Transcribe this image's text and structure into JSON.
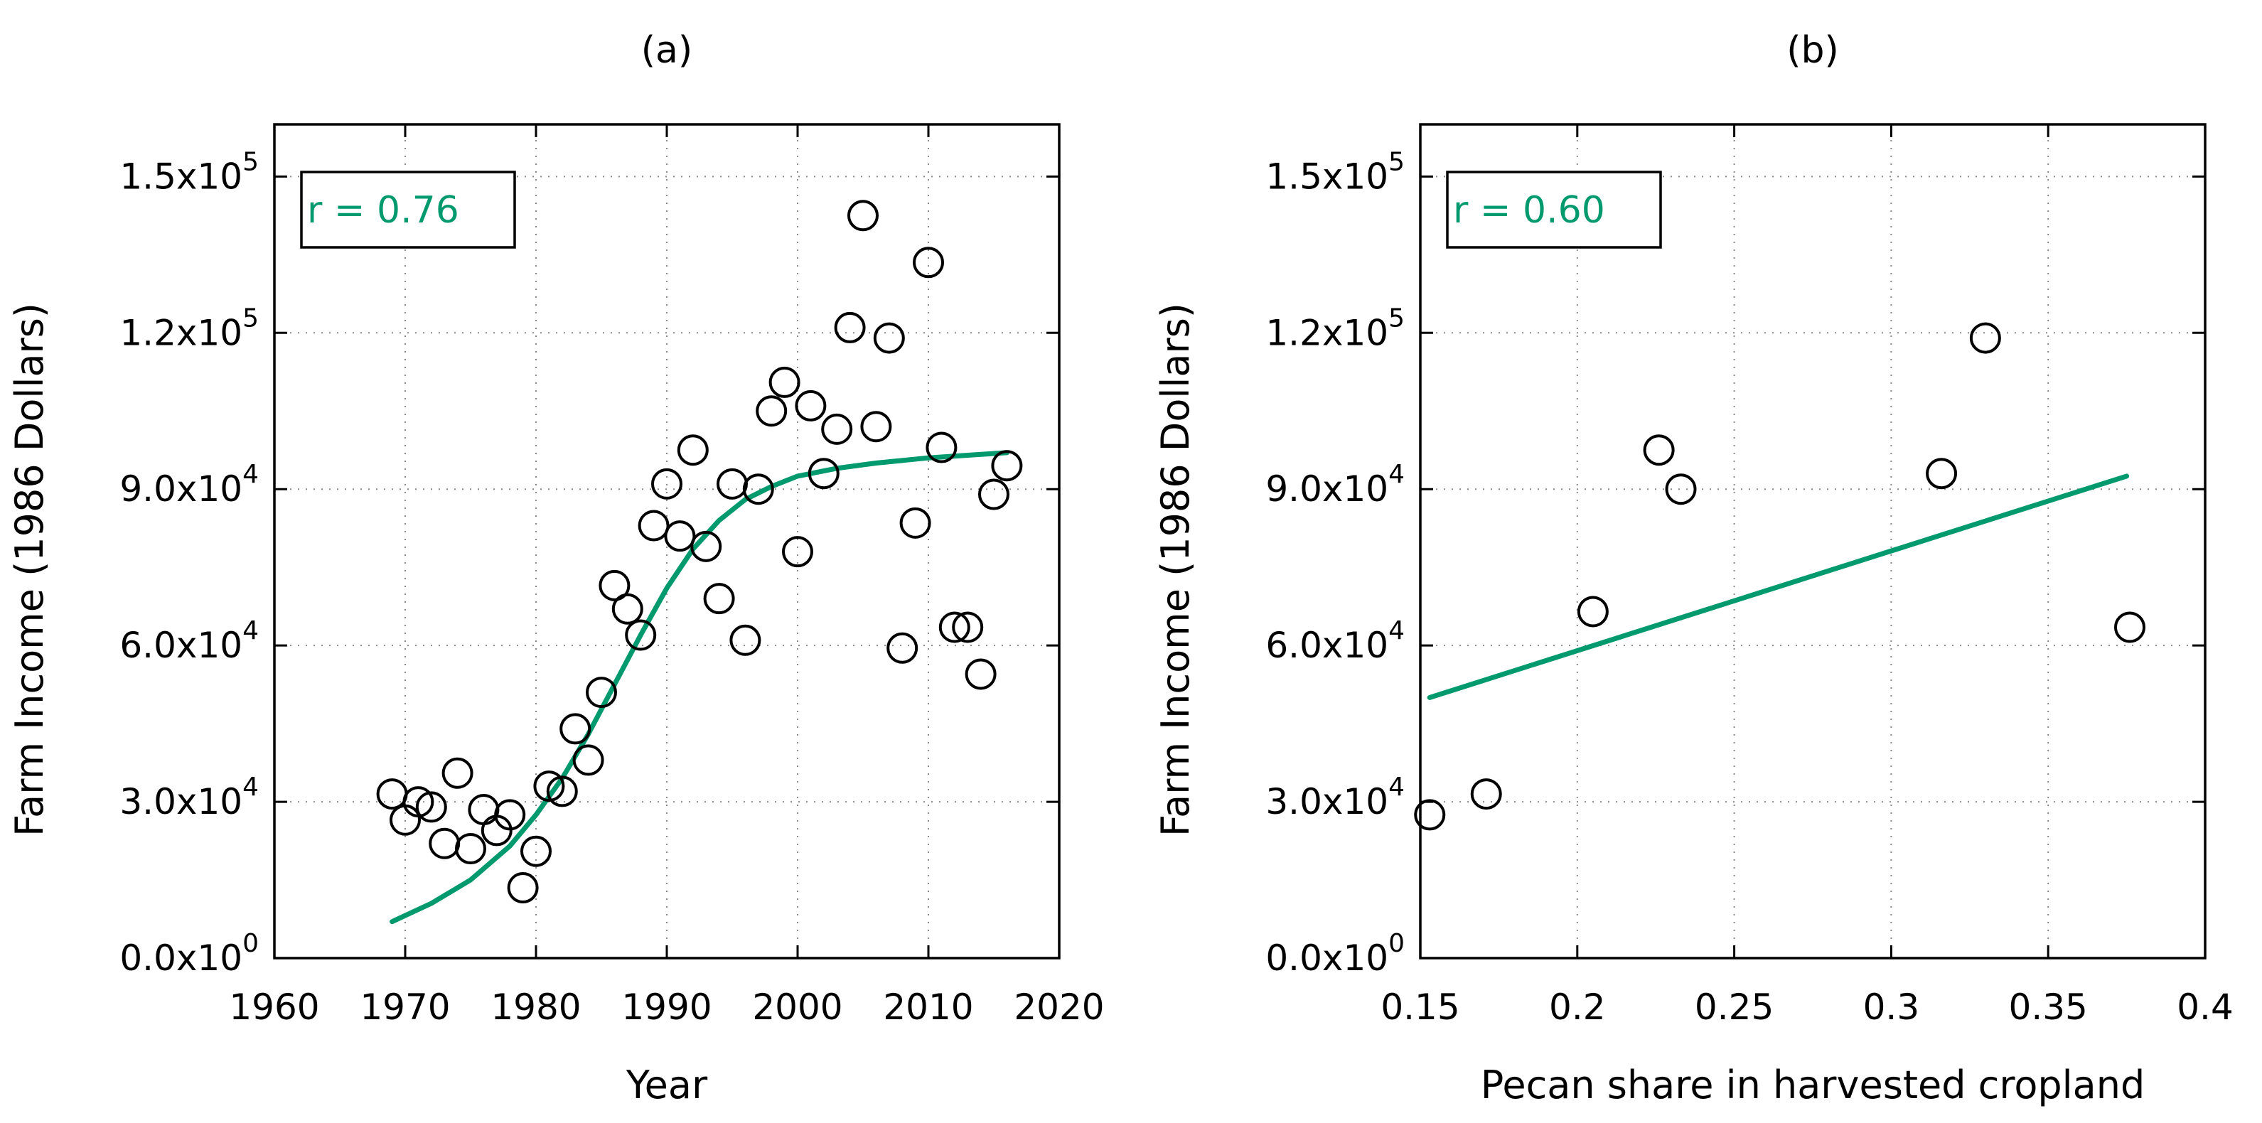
{
  "chart_data": [
    {
      "type": "scatter",
      "title": "(a)",
      "xlabel": "Year",
      "ylabel": "Farm Income (1986 Dollars)",
      "xlim": [
        1960,
        2020
      ],
      "ylim": [
        0,
        160000
      ],
      "xticks": [
        {
          "value": 1960,
          "label": "1960"
        },
        {
          "value": 1970,
          "label": "1970"
        },
        {
          "value": 1980,
          "label": "1980"
        },
        {
          "value": 1990,
          "label": "1990"
        },
        {
          "value": 2000,
          "label": "2000"
        },
        {
          "value": 2010,
          "label": "2010"
        },
        {
          "value": 2020,
          "label": "2020"
        }
      ],
      "yticks": [
        {
          "value": 0,
          "mantissa": "0.0x10",
          "exp": "0"
        },
        {
          "value": 30000,
          "mantissa": "3.0x10",
          "exp": "4"
        },
        {
          "value": 60000,
          "mantissa": "6.0x10",
          "exp": "4"
        },
        {
          "value": 90000,
          "mantissa": "9.0x10",
          "exp": "4"
        },
        {
          "value": 120000,
          "mantissa": "1.2x10",
          "exp": "5"
        },
        {
          "value": 150000,
          "mantissa": "1.5x10",
          "exp": "5"
        }
      ],
      "grid": true,
      "annotation": "r = 0.76",
      "fit_color": "#009a6e",
      "points": [
        {
          "x": 1969,
          "y": 31500
        },
        {
          "x": 1970,
          "y": 26500
        },
        {
          "x": 1971,
          "y": 30000
        },
        {
          "x": 1972,
          "y": 29000
        },
        {
          "x": 1973,
          "y": 22000
        },
        {
          "x": 1974,
          "y": 35500
        },
        {
          "x": 1975,
          "y": 21000
        },
        {
          "x": 1976,
          "y": 28500
        },
        {
          "x": 1977,
          "y": 24500
        },
        {
          "x": 1978,
          "y": 27500
        },
        {
          "x": 1979,
          "y": 13500
        },
        {
          "x": 1980,
          "y": 20500
        },
        {
          "x": 1981,
          "y": 33000
        },
        {
          "x": 1982,
          "y": 32000
        },
        {
          "x": 1983,
          "y": 44000
        },
        {
          "x": 1984,
          "y": 38000
        },
        {
          "x": 1985,
          "y": 51000
        },
        {
          "x": 1986,
          "y": 71500
        },
        {
          "x": 1987,
          "y": 67000
        },
        {
          "x": 1988,
          "y": 62000
        },
        {
          "x": 1989,
          "y": 83000
        },
        {
          "x": 1990,
          "y": 91000
        },
        {
          "x": 1991,
          "y": 81000
        },
        {
          "x": 1992,
          "y": 97500
        },
        {
          "x": 1993,
          "y": 79000
        },
        {
          "x": 1994,
          "y": 69000
        },
        {
          "x": 1995,
          "y": 91000
        },
        {
          "x": 1996,
          "y": 61000
        },
        {
          "x": 1997,
          "y": 90000
        },
        {
          "x": 1998,
          "y": 105000
        },
        {
          "x": 1999,
          "y": 110500
        },
        {
          "x": 2000,
          "y": 78000
        },
        {
          "x": 2001,
          "y": 106000
        },
        {
          "x": 2002,
          "y": 93000
        },
        {
          "x": 2003,
          "y": 101500
        },
        {
          "x": 2004,
          "y": 121000
        },
        {
          "x": 2005,
          "y": 142500
        },
        {
          "x": 2006,
          "y": 102000
        },
        {
          "x": 2007,
          "y": 119000
        },
        {
          "x": 2008,
          "y": 59500
        },
        {
          "x": 2009,
          "y": 83500
        },
        {
          "x": 2010,
          "y": 133500
        },
        {
          "x": 2011,
          "y": 98000
        },
        {
          "x": 2012,
          "y": 63500
        },
        {
          "x": 2013,
          "y": 63500
        },
        {
          "x": 2014,
          "y": 54500
        },
        {
          "x": 2015,
          "y": 89000
        },
        {
          "x": 2016,
          "y": 94500
        }
      ],
      "fit": [
        {
          "x": 1969,
          "y": 7000
        },
        {
          "x": 1972,
          "y": 10500
        },
        {
          "x": 1975,
          "y": 15000
        },
        {
          "x": 1978,
          "y": 21500
        },
        {
          "x": 1980,
          "y": 27500
        },
        {
          "x": 1982,
          "y": 34500
        },
        {
          "x": 1984,
          "y": 43000
        },
        {
          "x": 1986,
          "y": 52500
        },
        {
          "x": 1988,
          "y": 62000
        },
        {
          "x": 1990,
          "y": 71000
        },
        {
          "x": 1992,
          "y": 78500
        },
        {
          "x": 1994,
          "y": 84000
        },
        {
          "x": 1996,
          "y": 88000
        },
        {
          "x": 1998,
          "y": 90500
        },
        {
          "x": 2000,
          "y": 92500
        },
        {
          "x": 2003,
          "y": 94000
        },
        {
          "x": 2006,
          "y": 95000
        },
        {
          "x": 2010,
          "y": 96000
        },
        {
          "x": 2013,
          "y": 96500
        },
        {
          "x": 2016,
          "y": 97000
        }
      ]
    },
    {
      "type": "scatter",
      "title": "(b)",
      "xlabel": "Pecan share in harvested cropland",
      "ylabel": "Farm Income (1986 Dollars)",
      "xlim": [
        0.15,
        0.4
      ],
      "ylim": [
        0,
        160000
      ],
      "xticks": [
        {
          "value": 0.15,
          "label": "0.15"
        },
        {
          "value": 0.2,
          "label": "0.2"
        },
        {
          "value": 0.25,
          "label": "0.25"
        },
        {
          "value": 0.3,
          "label": "0.3"
        },
        {
          "value": 0.35,
          "label": "0.35"
        },
        {
          "value": 0.4,
          "label": "0.4"
        }
      ],
      "yticks": [
        {
          "value": 0,
          "mantissa": "0.0x10",
          "exp": "0"
        },
        {
          "value": 30000,
          "mantissa": "3.0x10",
          "exp": "4"
        },
        {
          "value": 60000,
          "mantissa": "6.0x10",
          "exp": "4"
        },
        {
          "value": 90000,
          "mantissa": "9.0x10",
          "exp": "4"
        },
        {
          "value": 120000,
          "mantissa": "1.2x10",
          "exp": "5"
        },
        {
          "value": 150000,
          "mantissa": "1.5x10",
          "exp": "5"
        }
      ],
      "grid": true,
      "annotation": "r = 0.60",
      "fit_color": "#009a6e",
      "points": [
        {
          "x": 0.153,
          "y": 27500
        },
        {
          "x": 0.171,
          "y": 31500
        },
        {
          "x": 0.205,
          "y": 66500
        },
        {
          "x": 0.226,
          "y": 97500
        },
        {
          "x": 0.233,
          "y": 90000
        },
        {
          "x": 0.316,
          "y": 93000
        },
        {
          "x": 0.33,
          "y": 119000
        },
        {
          "x": 0.376,
          "y": 63500
        }
      ],
      "fit": [
        {
          "x": 0.153,
          "y": 50000
        },
        {
          "x": 0.375,
          "y": 92500
        }
      ]
    }
  ]
}
